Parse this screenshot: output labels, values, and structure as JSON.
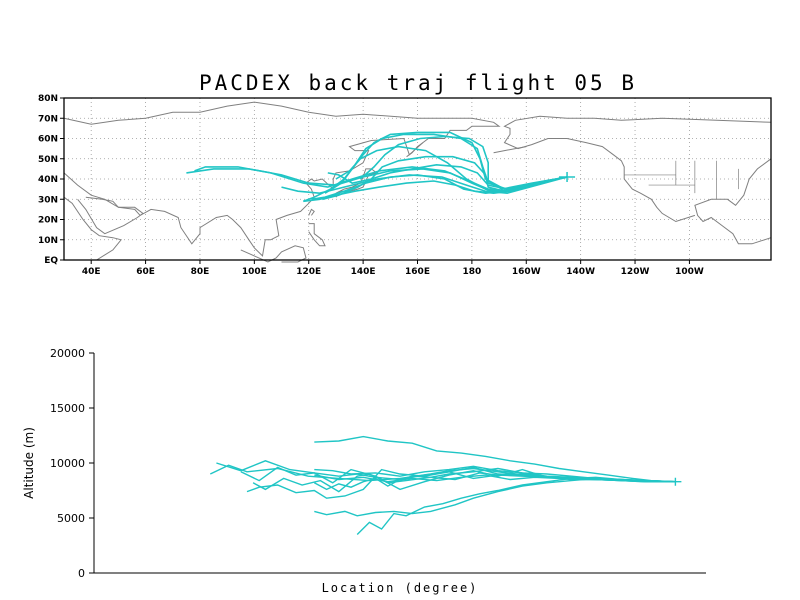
{
  "chart_data": [
    {
      "type": "map",
      "title": "PACDEX back traj flight 05 B",
      "lon_range": [
        30,
        290
      ],
      "lat_range": [
        0,
        80
      ],
      "lon_ticks": [
        40,
        60,
        80,
        100,
        120,
        140,
        160,
        180,
        200,
        220,
        240,
        260
      ],
      "lon_tick_labels": [
        "40E",
        "60E",
        "80E",
        "100E",
        "120E",
        "140E",
        "160E",
        "180",
        "160W",
        "140W",
        "120W",
        "100W"
      ],
      "lat_ticks": [
        0,
        10,
        20,
        30,
        40,
        50,
        60,
        70,
        80
      ],
      "lat_tick_labels": [
        "EQ",
        "10N",
        "20N",
        "30N",
        "40N",
        "50N",
        "60N",
        "70N",
        "80N"
      ],
      "grid": true,
      "trajectory_color": "#20c5c5",
      "coastline_color": "#808080",
      "origin": {
        "lon": 215,
        "lat": 41
      },
      "trajectories": [
        [
          [
            215,
            41
          ],
          [
            205,
            38
          ],
          [
            195,
            34
          ],
          [
            187,
            34
          ],
          [
            180,
            38
          ],
          [
            172,
            43
          ],
          [
            162,
            45
          ],
          [
            150,
            44
          ],
          [
            140,
            41
          ],
          [
            130,
            37
          ],
          [
            120,
            38
          ],
          [
            110,
            42
          ],
          [
            98,
            45
          ],
          [
            85,
            45
          ],
          [
            75,
            43
          ]
        ],
        [
          [
            215,
            41
          ],
          [
            205,
            38
          ],
          [
            194,
            34
          ],
          [
            186,
            35
          ],
          [
            179,
            39
          ],
          [
            170,
            44
          ],
          [
            158,
            46
          ],
          [
            146,
            44
          ],
          [
            136,
            40
          ],
          [
            127,
            36
          ],
          [
            118,
            38
          ],
          [
            106,
            43
          ],
          [
            94,
            46
          ],
          [
            82,
            46
          ],
          [
            78,
            44
          ]
        ],
        [
          [
            215,
            41
          ],
          [
            204,
            37
          ],
          [
            193,
            33
          ],
          [
            185,
            34
          ],
          [
            178,
            37
          ],
          [
            169,
            41
          ],
          [
            157,
            42
          ],
          [
            145,
            40
          ],
          [
            133,
            36
          ],
          [
            124,
            33
          ],
          [
            116,
            34
          ],
          [
            110,
            36
          ]
        ],
        [
          [
            215,
            41
          ],
          [
            204,
            38
          ],
          [
            193,
            35
          ],
          [
            186,
            38
          ],
          [
            184,
            46
          ],
          [
            182,
            55
          ],
          [
            176,
            60
          ],
          [
            166,
            62
          ],
          [
            155,
            62
          ],
          [
            147,
            60
          ],
          [
            141,
            55
          ],
          [
            137,
            47
          ],
          [
            133,
            40
          ],
          [
            128,
            35
          ],
          [
            122,
            31
          ],
          [
            118,
            29
          ]
        ],
        [
          [
            215,
            41
          ],
          [
            203,
            38
          ],
          [
            192,
            35
          ],
          [
            185,
            40
          ],
          [
            183,
            50
          ],
          [
            180,
            58
          ],
          [
            172,
            63
          ],
          [
            160,
            63
          ],
          [
            150,
            62
          ],
          [
            144,
            58
          ],
          [
            140,
            52
          ],
          [
            136,
            45
          ],
          [
            132,
            38
          ],
          [
            126,
            33
          ]
        ],
        [
          [
            215,
            41
          ],
          [
            203,
            38
          ],
          [
            192,
            34
          ],
          [
            186,
            36
          ],
          [
            185,
            42
          ],
          [
            181,
            48
          ],
          [
            173,
            51
          ],
          [
            163,
            51
          ],
          [
            153,
            49
          ],
          [
            147,
            46
          ],
          [
            143,
            40
          ],
          [
            138,
            36
          ],
          [
            131,
            32
          ],
          [
            125,
            30
          ]
        ],
        [
          [
            215,
            41
          ],
          [
            202,
            38
          ],
          [
            191,
            35
          ],
          [
            186,
            39
          ],
          [
            186,
            48
          ],
          [
            184,
            56
          ],
          [
            179,
            60
          ],
          [
            170,
            61
          ],
          [
            161,
            60
          ],
          [
            153,
            57
          ],
          [
            148,
            52
          ],
          [
            144,
            46
          ],
          [
            139,
            40
          ]
        ],
        [
          [
            215,
            41
          ],
          [
            203,
            38
          ],
          [
            193,
            35
          ],
          [
            186,
            37
          ],
          [
            182,
            43
          ],
          [
            176,
            46
          ],
          [
            167,
            47
          ],
          [
            158,
            45
          ],
          [
            150,
            43
          ],
          [
            143,
            40
          ],
          [
            136,
            38
          ],
          [
            131,
            42
          ],
          [
            127,
            43
          ]
        ],
        [
          [
            215,
            41
          ],
          [
            204,
            38
          ],
          [
            194,
            34
          ],
          [
            188,
            33
          ],
          [
            181,
            34
          ],
          [
            174,
            37
          ],
          [
            166,
            39
          ],
          [
            156,
            38
          ],
          [
            146,
            36
          ],
          [
            137,
            34
          ],
          [
            130,
            32
          ],
          [
            124,
            30
          ],
          [
            118,
            29
          ]
        ],
        [
          [
            215,
            41
          ],
          [
            203,
            38
          ],
          [
            192,
            34
          ],
          [
            185,
            33
          ],
          [
            177,
            35
          ],
          [
            170,
            40
          ],
          [
            160,
            42
          ],
          [
            150,
            41
          ],
          [
            141,
            38
          ],
          [
            133,
            34
          ],
          [
            126,
            31
          ],
          [
            121,
            30
          ]
        ],
        [
          [
            215,
            41
          ],
          [
            202,
            37
          ],
          [
            191,
            34
          ],
          [
            185,
            35
          ],
          [
            178,
            40
          ],
          [
            171,
            48
          ],
          [
            163,
            54
          ],
          [
            153,
            56
          ],
          [
            145,
            54
          ],
          [
            139,
            50
          ],
          [
            135,
            44
          ],
          [
            130,
            40
          ]
        ]
      ]
    },
    {
      "type": "line",
      "xlabel": "Location (degree)",
      "ylabel": "Altitude (m)",
      "ylim": [
        0,
        20000
      ],
      "yticks": [
        0,
        5000,
        10000,
        15000,
        20000
      ],
      "xlim": [
        0,
        100
      ],
      "grid": false,
      "series_color": "#20c5c5",
      "series": [
        {
          "x": [
            19,
            22,
            25,
            30,
            35,
            40,
            45,
            50,
            55,
            58,
            62,
            66,
            72,
            76,
            80,
            84,
            88,
            91,
            95
          ],
          "y": [
            9000,
            9800,
            9200,
            9500,
            8800,
            8600,
            8400,
            8600,
            9000,
            9300,
            9500,
            9200,
            8800,
            8700,
            8600,
            8500,
            8400,
            8300,
            8300
          ]
        },
        {
          "x": [
            20,
            24,
            28,
            32,
            36,
            40,
            43,
            46,
            50,
            54,
            58,
            62,
            66,
            70,
            74,
            78,
            82,
            86,
            91,
            95
          ],
          "y": [
            10000,
            9300,
            10200,
            9400,
            9100,
            8800,
            9000,
            8700,
            8500,
            8900,
            9200,
            9600,
            9000,
            8900,
            8700,
            8600,
            8500,
            8400,
            8300,
            8300
          ]
        },
        {
          "x": [
            24,
            27,
            30,
            33,
            36,
            39,
            42,
            46,
            50,
            54,
            58,
            62,
            66,
            70,
            74,
            78,
            82,
            86,
            90,
            95
          ],
          "y": [
            9200,
            8400,
            9600,
            8900,
            9100,
            8200,
            9400,
            8800,
            7600,
            8300,
            8900,
            9300,
            8800,
            9400,
            8700,
            8500,
            8500,
            8400,
            8300,
            8300
          ]
        },
        {
          "x": [
            26,
            28,
            31,
            34,
            37,
            40,
            43,
            45,
            48,
            51,
            55,
            59,
            63,
            66,
            70,
            74,
            78,
            82,
            86,
            90,
            95
          ],
          "y": [
            8200,
            7600,
            8600,
            8000,
            8400,
            7400,
            8800,
            9000,
            8200,
            8400,
            8700,
            8500,
            9100,
            8900,
            8800,
            8700,
            8600,
            8500,
            8400,
            8300,
            8300
          ]
        },
        {
          "x": [
            25,
            27,
            30,
            33,
            36,
            38,
            41,
            44,
            47,
            50,
            54,
            58,
            62,
            66,
            70,
            75,
            80,
            85,
            90,
            95
          ],
          "y": [
            7400,
            7800,
            8000,
            7300,
            7500,
            6800,
            7000,
            7600,
            9400,
            9000,
            8800,
            9200,
            8600,
            8900,
            9000,
            8700,
            8600,
            8500,
            8400,
            8300
          ]
        },
        {
          "x": [
            36,
            38,
            40,
            42,
            44,
            46,
            48,
            50,
            52,
            55,
            58,
            62,
            66,
            70,
            74,
            78,
            82,
            86,
            90,
            95
          ],
          "y": [
            8200,
            7600,
            8100,
            7800,
            8300,
            8600,
            7900,
            8500,
            8800,
            8700,
            9000,
            9200,
            9500,
            9100,
            8800,
            8700,
            8600,
            8500,
            8400,
            8300
          ]
        },
        {
          "x": [
            36,
            40,
            44,
            48,
            52,
            56,
            60,
            64,
            68,
            72,
            76,
            80,
            84,
            88,
            91,
            95
          ],
          "y": [
            11900,
            12000,
            12400,
            12000,
            11800,
            11100,
            10900,
            10600,
            10200,
            9900,
            9500,
            9200,
            8900,
            8600,
            8400,
            8300
          ]
        },
        {
          "x": [
            36,
            38,
            41,
            43,
            46,
            49,
            52,
            55,
            59,
            62,
            66,
            70,
            74,
            78,
            82,
            86,
            90,
            95
          ],
          "y": [
            5600,
            5300,
            5600,
            5200,
            5500,
            5600,
            5400,
            5600,
            6200,
            6800,
            7400,
            7900,
            8200,
            8400,
            8600,
            8500,
            8400,
            8300
          ]
        },
        {
          "x": [
            43,
            45,
            47,
            49,
            51,
            54,
            57,
            60,
            63,
            66,
            70,
            74,
            78,
            82,
            86,
            90,
            95
          ],
          "y": [
            3500,
            4600,
            4000,
            5400,
            5200,
            6000,
            6300,
            6800,
            7200,
            7500,
            8000,
            8300,
            8600,
            8700,
            8500,
            8400,
            8300
          ]
        },
        {
          "x": [
            36,
            39,
            42,
            46,
            50,
            54,
            58,
            62,
            66,
            70,
            74,
            78,
            82,
            86,
            90,
            95
          ],
          "y": [
            9400,
            9300,
            9000,
            9100,
            8800,
            9200,
            9400,
            9700,
            9300,
            9100,
            9000,
            8800,
            8600,
            8500,
            8400,
            8300
          ]
        },
        {
          "x": [
            36,
            40,
            44,
            48,
            52,
            56,
            60,
            64,
            68,
            72,
            76,
            80,
            84,
            88,
            91,
            95
          ],
          "y": [
            8900,
            8500,
            8700,
            8300,
            8600,
            8400,
            8700,
            8900,
            8500,
            8700,
            8600,
            8500,
            8500,
            8400,
            8300,
            8300
          ]
        }
      ]
    }
  ]
}
